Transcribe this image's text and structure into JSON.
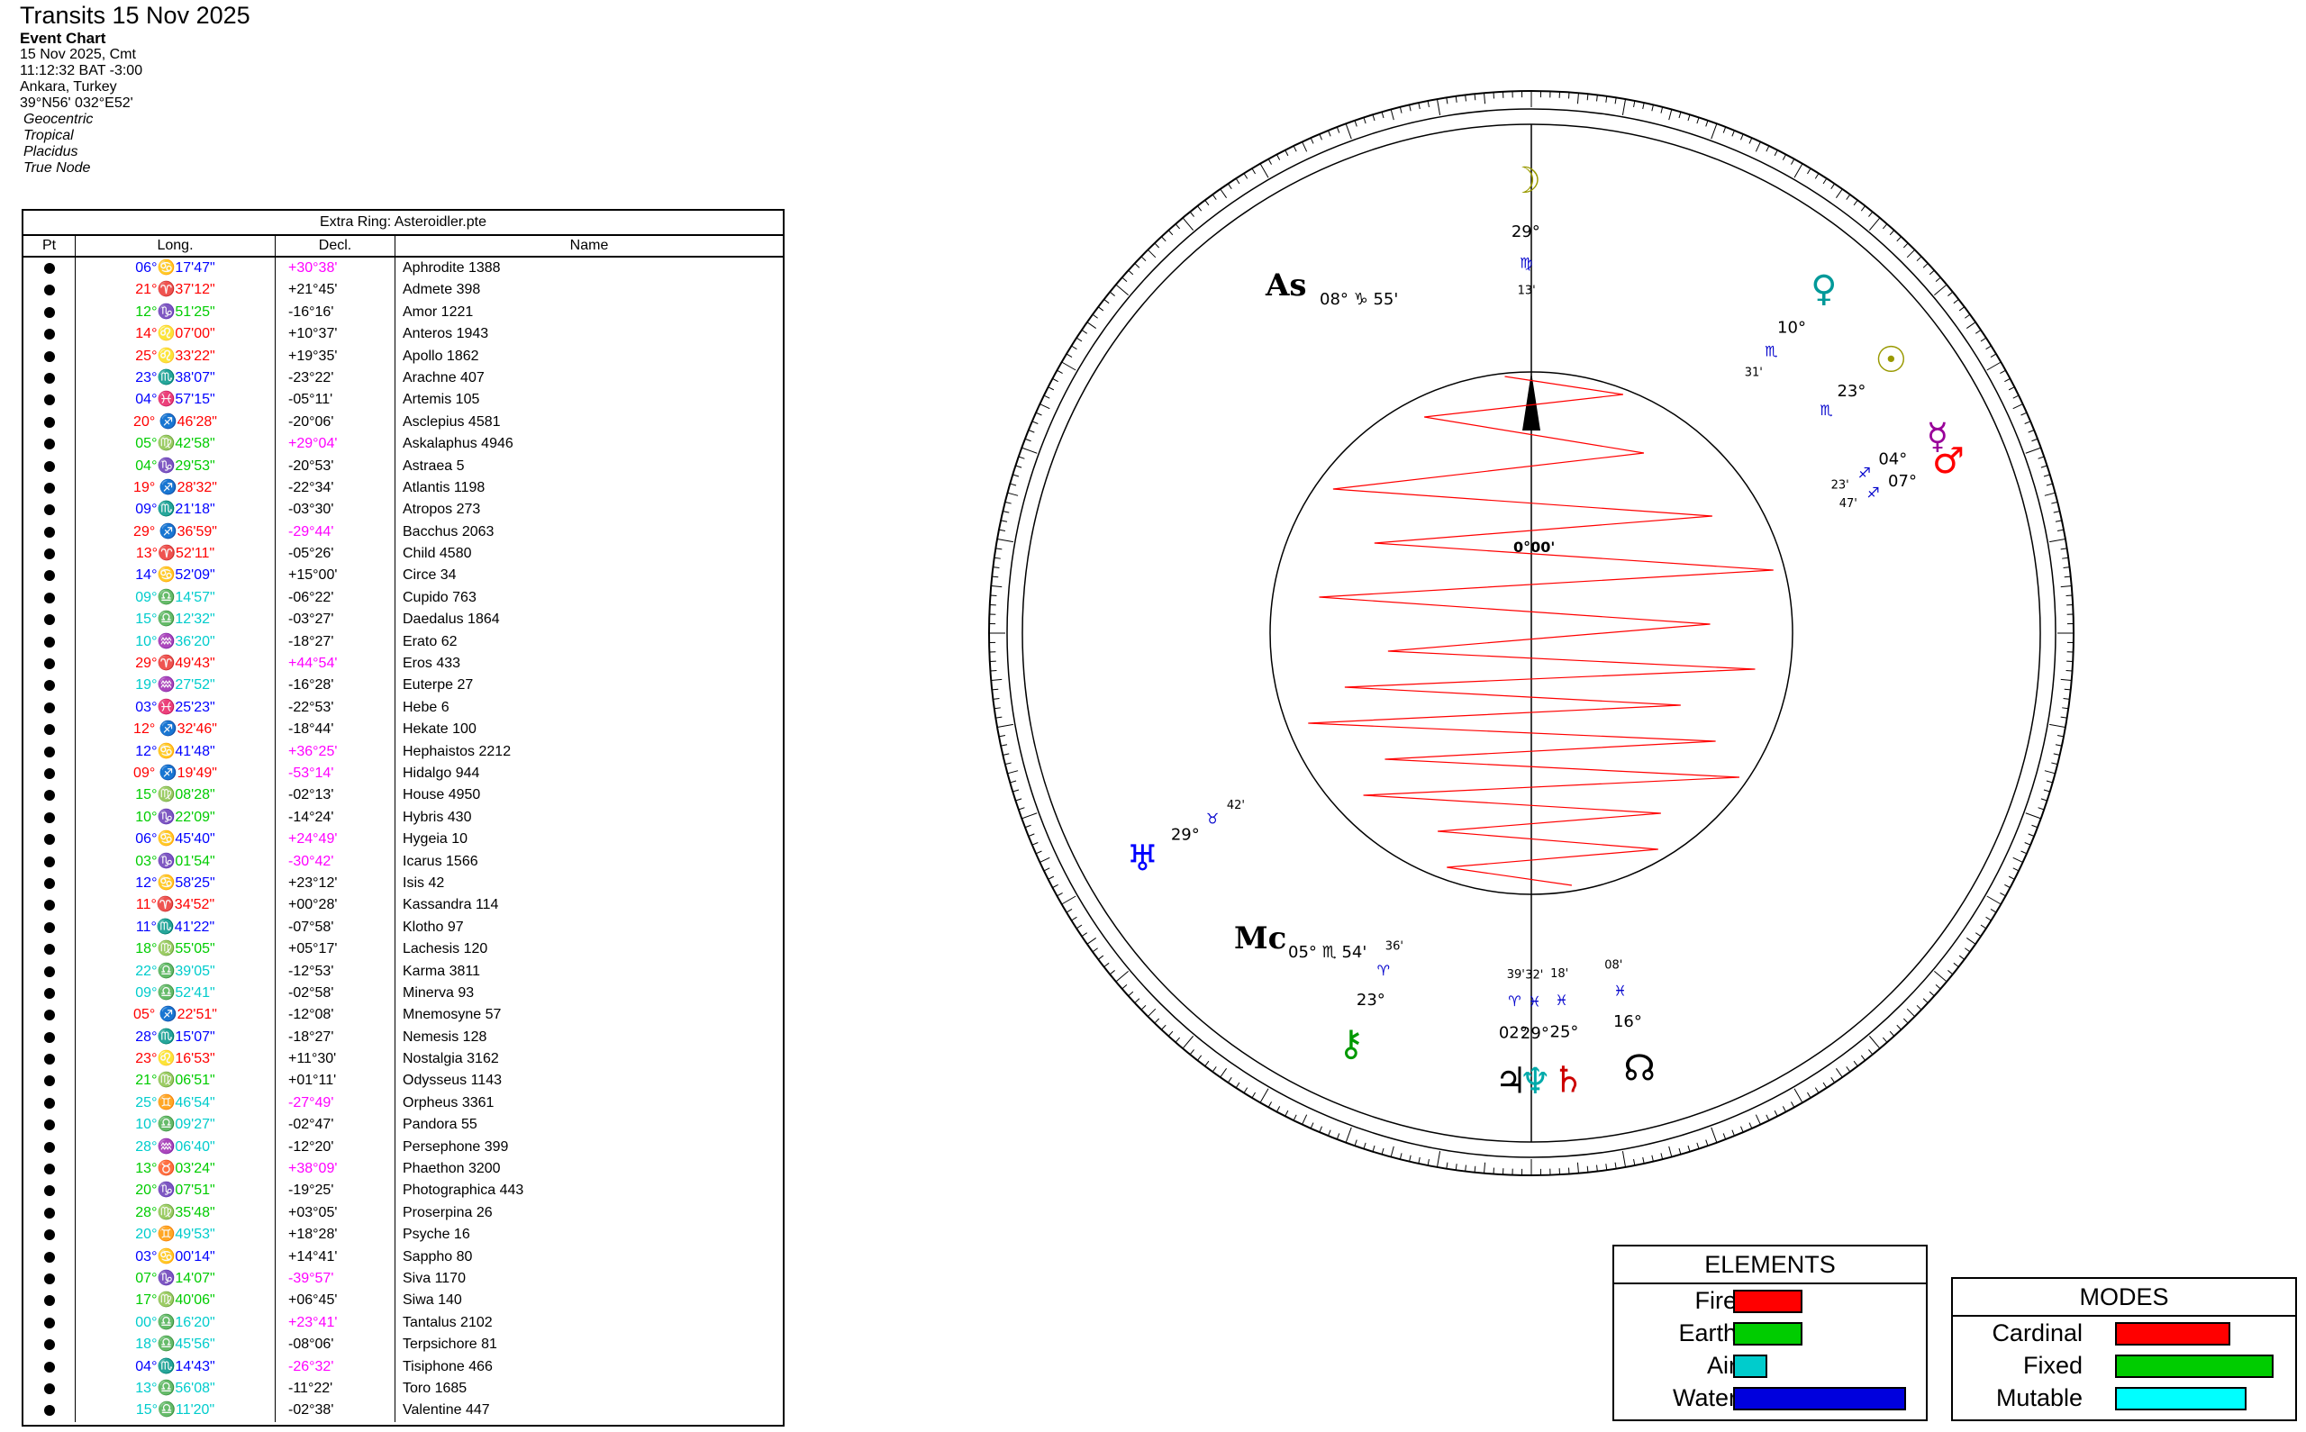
{
  "header": {
    "title": "Transits 15 Nov 2025",
    "chart_type": "Event Chart",
    "date": "15 Nov 2025, Cmt",
    "time": "11:12:32  BAT -3:00",
    "place": "Ankara, Turkey",
    "coords": "39°N56' 032°E52'",
    "settings": [
      "Geocentric",
      "Tropical",
      "Placidus",
      "True Node"
    ]
  },
  "table": {
    "caption": "Extra Ring: Asteroidler.pte",
    "headers": [
      "Pt",
      "Long.",
      "Decl.",
      "Name"
    ],
    "rows": [
      {
        "lon": "06°♋17'47\"",
        "lc": "#0000ff",
        "dec": "+30°38'",
        "dc": "#ff00ff",
        "name": "Aphrodite 1388"
      },
      {
        "lon": "21°♈37'12\"",
        "lc": "#ff0000",
        "dec": "+21°45'",
        "dc": "#000000",
        "name": "Admete 398"
      },
      {
        "lon": "12°♑51'25\"",
        "lc": "#00cc00",
        "dec": "-16°16'",
        "dc": "#000000",
        "name": "Amor 1221"
      },
      {
        "lon": "14°♌07'00\"",
        "lc": "#ff0000",
        "dec": "+10°37'",
        "dc": "#000000",
        "name": "Anteros 1943"
      },
      {
        "lon": "25°♌33'22\"",
        "lc": "#ff0000",
        "dec": "+19°35'",
        "dc": "#000000",
        "name": "Apollo 1862"
      },
      {
        "lon": "23°♏38'07\"",
        "lc": "#0000ff",
        "dec": "-23°22'",
        "dc": "#000000",
        "name": "Arachne 407"
      },
      {
        "lon": "04°♓57'15\"",
        "lc": "#0000ff",
        "dec": "-05°11'",
        "dc": "#000000",
        "name": "Artemis 105"
      },
      {
        "lon": "20° ♐46'28\"",
        "lc": "#ff0000",
        "dec": "-20°06'",
        "dc": "#000000",
        "name": "Asclepius 4581"
      },
      {
        "lon": "05°♍42'58\"",
        "lc": "#00cc00",
        "dec": "+29°04'",
        "dc": "#ff00ff",
        "name": "Askalaphus 4946"
      },
      {
        "lon": "04°♑29'53\"",
        "lc": "#00cc00",
        "dec": "-20°53'",
        "dc": "#000000",
        "name": "Astraea 5"
      },
      {
        "lon": "19° ♐28'32\"",
        "lc": "#ff0000",
        "dec": "-22°34'",
        "dc": "#000000",
        "name": "Atlantis 1198"
      },
      {
        "lon": "09°♏21'18\"",
        "lc": "#0000ff",
        "dec": "-03°30'",
        "dc": "#000000",
        "name": "Atropos 273"
      },
      {
        "lon": "29° ♐36'59\"",
        "lc": "#ff0000",
        "dec": "-29°44'",
        "dc": "#ff00ff",
        "name": "Bacchus 2063"
      },
      {
        "lon": "13°♈52'11\"",
        "lc": "#ff0000",
        "dec": "-05°26'",
        "dc": "#000000",
        "name": "Child 4580"
      },
      {
        "lon": "14°♋52'09\"",
        "lc": "#0000ff",
        "dec": "+15°00'",
        "dc": "#000000",
        "name": "Circe 34"
      },
      {
        "lon": "09°♎14'57\"",
        "lc": "#00cccc",
        "dec": "-06°22'",
        "dc": "#000000",
        "name": "Cupido 763"
      },
      {
        "lon": "15°♎12'32\"",
        "lc": "#00cccc",
        "dec": "-03°27'",
        "dc": "#000000",
        "name": "Daedalus 1864"
      },
      {
        "lon": "10°♒36'20\"",
        "lc": "#00cccc",
        "dec": "-18°27'",
        "dc": "#000000",
        "name": "Erato 62"
      },
      {
        "lon": "29°♈49'43\"",
        "lc": "#ff0000",
        "dec": "+44°54'",
        "dc": "#ff00ff",
        "name": "Eros 433"
      },
      {
        "lon": "19°♒27'52\"",
        "lc": "#00cccc",
        "dec": "-16°28'",
        "dc": "#000000",
        "name": "Euterpe 27"
      },
      {
        "lon": "03°♓25'23\"",
        "lc": "#0000ff",
        "dec": "-22°53'",
        "dc": "#000000",
        "name": "Hebe 6"
      },
      {
        "lon": "12° ♐32'46\"",
        "lc": "#ff0000",
        "dec": "-18°44'",
        "dc": "#000000",
        "name": "Hekate 100"
      },
      {
        "lon": "12°♋41'48\"",
        "lc": "#0000ff",
        "dec": "+36°25'",
        "dc": "#ff00ff",
        "name": "Hephaistos 2212"
      },
      {
        "lon": "09° ♐19'49\"",
        "lc": "#ff0000",
        "dec": "-53°14'",
        "dc": "#ff00ff",
        "name": "Hidalgo 944"
      },
      {
        "lon": "15°♍08'28\"",
        "lc": "#00cc00",
        "dec": "-02°13'",
        "dc": "#000000",
        "name": "House 4950"
      },
      {
        "lon": "10°♑22'09\"",
        "lc": "#00cc00",
        "dec": "-14°24'",
        "dc": "#000000",
        "name": "Hybris 430"
      },
      {
        "lon": "06°♋45'40\"",
        "lc": "#0000ff",
        "dec": "+24°49'",
        "dc": "#ff00ff",
        "name": "Hygeia 10"
      },
      {
        "lon": "03°♑01'54\"",
        "lc": "#00cc00",
        "dec": "-30°42'",
        "dc": "#ff00ff",
        "name": "Icarus 1566"
      },
      {
        "lon": "12°♋58'25\"",
        "lc": "#0000ff",
        "dec": "+23°12'",
        "dc": "#000000",
        "name": "Isis 42"
      },
      {
        "lon": "11°♈34'52\"",
        "lc": "#ff0000",
        "dec": "+00°28'",
        "dc": "#000000",
        "name": "Kassandra 114"
      },
      {
        "lon": "11°♏41'22\"",
        "lc": "#0000ff",
        "dec": "-07°58'",
        "dc": "#000000",
        "name": "Klotho 97"
      },
      {
        "lon": "18°♍55'05\"",
        "lc": "#00cc00",
        "dec": "+05°17'",
        "dc": "#000000",
        "name": "Lachesis 120"
      },
      {
        "lon": "22°♎39'05\"",
        "lc": "#00cccc",
        "dec": "-12°53'",
        "dc": "#000000",
        "name": "Karma 3811"
      },
      {
        "lon": "09°♎52'41\"",
        "lc": "#00cccc",
        "dec": "-02°58'",
        "dc": "#000000",
        "name": "Minerva 93"
      },
      {
        "lon": "05° ♐22'51\"",
        "lc": "#ff0000",
        "dec": "-12°08'",
        "dc": "#000000",
        "name": "Mnemosyne 57"
      },
      {
        "lon": "28°♏15'07\"",
        "lc": "#0000ff",
        "dec": "-18°27'",
        "dc": "#000000",
        "name": "Nemesis 128"
      },
      {
        "lon": "23°♌16'53\"",
        "lc": "#ff0000",
        "dec": "+11°30'",
        "dc": "#000000",
        "name": "Nostalgia 3162"
      },
      {
        "lon": "21°♍06'51\"",
        "lc": "#00cc00",
        "dec": "+01°11'",
        "dc": "#000000",
        "name": "Odysseus 1143"
      },
      {
        "lon": "25°♊46'54\"",
        "lc": "#00cccc",
        "dec": "-27°49'",
        "dc": "#ff00ff",
        "name": "Orpheus 3361"
      },
      {
        "lon": "10°♎09'27\"",
        "lc": "#00cccc",
        "dec": "-02°47'",
        "dc": "#000000",
        "name": "Pandora 55"
      },
      {
        "lon": "28°♒06'40\"",
        "lc": "#00cccc",
        "dec": "-12°20'",
        "dc": "#000000",
        "name": "Persephone 399"
      },
      {
        "lon": "13°♉03'24\"",
        "lc": "#00cc00",
        "dec": "+38°09'",
        "dc": "#ff00ff",
        "name": "Phaethon 3200"
      },
      {
        "lon": "20°♑07'51\"",
        "lc": "#00cc00",
        "dec": "-19°25'",
        "dc": "#000000",
        "name": "Photographica 443"
      },
      {
        "lon": "28°♍35'48\"",
        "lc": "#00cc00",
        "dec": "+03°05'",
        "dc": "#000000",
        "name": "Proserpina 26"
      },
      {
        "lon": "20°♊49'53\"",
        "lc": "#00cccc",
        "dec": "+18°28'",
        "dc": "#000000",
        "name": "Psyche 16"
      },
      {
        "lon": "03°♋00'14\"",
        "lc": "#0000ff",
        "dec": "+14°41'",
        "dc": "#000000",
        "name": "Sappho 80"
      },
      {
        "lon": "07°♑14'07\"",
        "lc": "#00cc00",
        "dec": "-39°57'",
        "dc": "#ff00ff",
        "name": "Siva 1170"
      },
      {
        "lon": "17°♍40'06\"",
        "lc": "#00cc00",
        "dec": "+06°45'",
        "dc": "#000000",
        "name": "Siwa 140"
      },
      {
        "lon": "00°♎16'20\"",
        "lc": "#00cccc",
        "dec": "+23°41'",
        "dc": "#ff00ff",
        "name": "Tantalus 2102"
      },
      {
        "lon": "18°♎45'56\"",
        "lc": "#00cccc",
        "dec": "-08°06'",
        "dc": "#000000",
        "name": "Terpsichore 81"
      },
      {
        "lon": "04°♏14'43\"",
        "lc": "#0000ff",
        "dec": "-26°32'",
        "dc": "#ff00ff",
        "name": "Tisiphone 466"
      },
      {
        "lon": "13°♎56'08\"",
        "lc": "#00cccc",
        "dec": "-11°22'",
        "dc": "#000000",
        "name": "Toro 1685"
      },
      {
        "lon": "15°♎11'20\"",
        "lc": "#00cccc",
        "dec": "-02°38'",
        "dc": "#000000",
        "name": "Valentine 447"
      }
    ]
  },
  "wheel": {
    "inner_label": "0°00'",
    "planets": [
      {
        "g": "♃",
        "deg": "02°",
        "sign": "♈",
        "min": "39'",
        "lon": 2.6,
        "c": "#000000"
      },
      {
        "g": "♆",
        "deg": "29°",
        "sign": "♓",
        "min": "32'",
        "lon": 359.5,
        "c": "#00aaaa"
      },
      {
        "g": "☽",
        "deg": "29°",
        "sign": "♍",
        "min": "13'",
        "lon": 179.2,
        "c": "#999900"
      },
      {
        "g": "♄",
        "deg": "25°",
        "sign": "♓",
        "min": "18'",
        "lon": 355.3,
        "c": "#cc0000"
      },
      {
        "g": "⚷",
        "deg": "23°",
        "sign": "♈",
        "min": "36'",
        "lon": 23.6,
        "c": "#009900"
      },
      {
        "g": "♀",
        "deg": "10°",
        "sign": "♏",
        "min": "31'",
        "lon": 220.5,
        "c": "#009999"
      },
      {
        "g": "☉",
        "deg": "23°",
        "sign": "♏",
        "min": "",
        "lon": 233.0,
        "c": "#999900"
      },
      {
        "g": "♂",
        "deg": "07°",
        "sign": "♐",
        "min": "47'",
        "lon": 247.8,
        "c": "#ff0000"
      },
      {
        "g": "☿",
        "deg": "04°",
        "sign": "♐",
        "min": "23'",
        "lon": 244.4,
        "c": "#990099"
      },
      {
        "g": "♅",
        "deg": "29°",
        "sign": "♉",
        "min": "42'",
        "lon": 59.7,
        "c": "#0000ff"
      },
      {
        "g": "☊",
        "deg": "16°",
        "sign": "♓",
        "min": "08'",
        "lon": 346.1,
        "c": "#000000"
      }
    ],
    "angles": [
      {
        "g": "As",
        "deg": "08°",
        "sign": "♑",
        "min": "55'"
      },
      {
        "g": "Mc",
        "deg": "05°",
        "sign": "♏",
        "min": "54'"
      }
    ]
  },
  "elements": {
    "title": "ELEMENTS",
    "items": [
      {
        "label": "Fire",
        "value": 0.4,
        "color": "#ff0000"
      },
      {
        "label": "Earth",
        "value": 0.4,
        "color": "#00cc00"
      },
      {
        "label": "Air",
        "value": 0.2,
        "color": "#00cccc"
      },
      {
        "label": "Water",
        "value": 1.0,
        "color": "#0000dd"
      }
    ]
  },
  "modes": {
    "title": "MODES",
    "items": [
      {
        "label": "Cardinal",
        "value": 0.73,
        "color": "#ff0000"
      },
      {
        "label": "Fixed",
        "value": 1.0,
        "color": "#00cc00"
      },
      {
        "label": "Mutable",
        "value": 0.83,
        "color": "#00ffff"
      }
    ]
  },
  "chart_data": [
    {
      "type": "bar",
      "title": "ELEMENTS",
      "categories": [
        "Fire",
        "Earth",
        "Air",
        "Water"
      ],
      "values": [
        0.4,
        0.4,
        0.2,
        1.0
      ]
    },
    {
      "type": "bar",
      "title": "MODES",
      "categories": [
        "Cardinal",
        "Fixed",
        "Mutable"
      ],
      "values": [
        0.73,
        1.0,
        0.83
      ]
    }
  ]
}
